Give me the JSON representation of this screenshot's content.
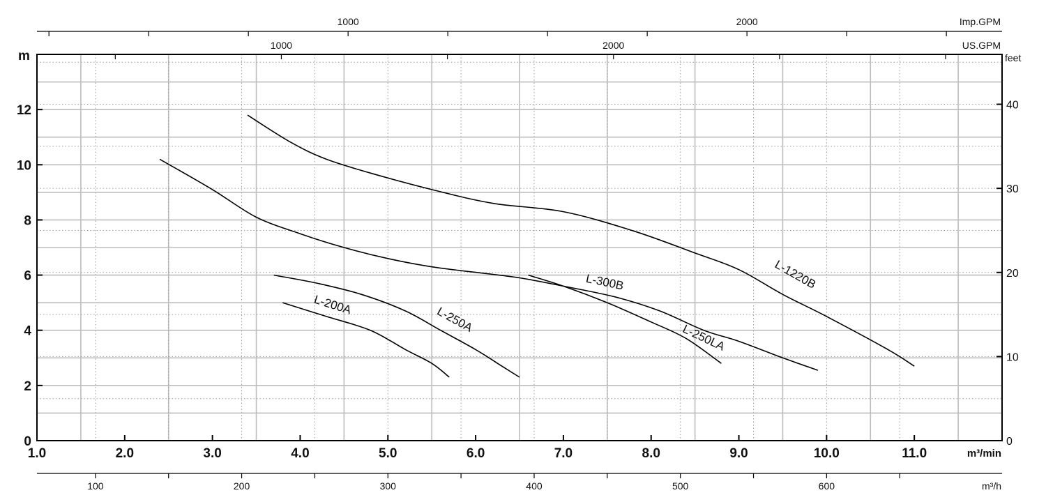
{
  "chart_data": {
    "type": "line",
    "title": "",
    "xlabel": "m³/min",
    "ylabel": "m",
    "y2label": "feet",
    "x_range": [
      1.0,
      12.0
    ],
    "y_range": [
      0,
      14
    ],
    "grid": true,
    "x_ticks": [
      "1.0",
      "2.0",
      "3.0",
      "4.0",
      "5.0",
      "6.0",
      "7.0",
      "8.0",
      "9.0",
      "10.0",
      "11.0"
    ],
    "y_ticks": [
      "0",
      "2",
      "4",
      "6",
      "8",
      "10",
      "12"
    ],
    "y_ticks_feet": [
      "0",
      "10",
      "20",
      "30",
      "40"
    ],
    "secondary_axes": {
      "m3h": {
        "label": "m³/h",
        "ticks": [
          "100",
          "200",
          "300",
          "400",
          "500",
          "600"
        ]
      },
      "us_gpm": {
        "label": "US.GPM",
        "ticks": [
          "1000",
          "2000"
        ]
      },
      "imp_gpm": {
        "label": "Imp.GPM",
        "ticks": [
          "1000",
          "2000"
        ]
      }
    },
    "series": [
      {
        "name": "L-1220B",
        "points": [
          [
            3.4,
            11.8
          ],
          [
            3.9,
            10.8
          ],
          [
            4.3,
            10.2
          ],
          [
            4.8,
            9.7
          ],
          [
            5.5,
            9.1
          ],
          [
            6.2,
            8.6
          ],
          [
            7.0,
            8.3
          ],
          [
            7.8,
            7.6
          ],
          [
            8.5,
            6.8
          ],
          [
            9.0,
            6.2
          ],
          [
            9.5,
            5.3
          ],
          [
            10.0,
            4.5
          ],
          [
            10.7,
            3.3
          ],
          [
            11.0,
            2.7
          ]
        ],
        "label": {
          "text": "L-1220B",
          "at": [
            9.4,
            6.3
          ]
        }
      },
      {
        "name": "L-300B",
        "points": [
          [
            2.4,
            10.2
          ],
          [
            3.0,
            9.1
          ],
          [
            3.5,
            8.1
          ],
          [
            4.0,
            7.5
          ],
          [
            4.5,
            7.0
          ],
          [
            5.0,
            6.6
          ],
          [
            5.5,
            6.3
          ],
          [
            6.0,
            6.1
          ],
          [
            6.5,
            5.9
          ],
          [
            7.0,
            5.6
          ],
          [
            7.6,
            5.2
          ],
          [
            8.1,
            4.7
          ],
          [
            8.6,
            4.0
          ],
          [
            9.0,
            3.6
          ],
          [
            9.5,
            3.0
          ],
          [
            9.9,
            2.55
          ]
        ],
        "label": {
          "text": "L-300B",
          "at": [
            7.25,
            5.75
          ]
        }
      },
      {
        "name": "L-250LA",
        "points": [
          [
            6.6,
            6.0
          ],
          [
            7.0,
            5.6
          ],
          [
            7.5,
            5.0
          ],
          [
            8.0,
            4.3
          ],
          [
            8.4,
            3.7
          ],
          [
            8.8,
            2.8
          ]
        ],
        "label": {
          "text": "L-250LA",
          "at": [
            8.35,
            3.95
          ]
        }
      },
      {
        "name": "L-250A",
        "points": [
          [
            3.7,
            6.0
          ],
          [
            4.2,
            5.7
          ],
          [
            4.7,
            5.3
          ],
          [
            5.2,
            4.7
          ],
          [
            5.6,
            4.0
          ],
          [
            6.0,
            3.3
          ],
          [
            6.3,
            2.7
          ],
          [
            6.5,
            2.3
          ]
        ],
        "label": {
          "text": "L-250A",
          "at": [
            5.55,
            4.6
          ]
        }
      },
      {
        "name": "L-200A",
        "points": [
          [
            3.8,
            5.0
          ],
          [
            4.3,
            4.5
          ],
          [
            4.8,
            4.0
          ],
          [
            5.2,
            3.3
          ],
          [
            5.5,
            2.8
          ],
          [
            5.7,
            2.3
          ]
        ],
        "label": {
          "text": "L-200A",
          "at": [
            4.15,
            5.0
          ]
        }
      }
    ]
  }
}
